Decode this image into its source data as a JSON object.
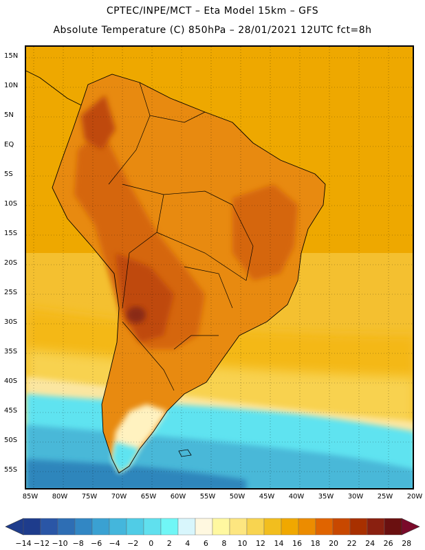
{
  "header": {
    "title_line1": "CPTEC/INPE/MCT –   Eta Model 15km – GFS",
    "title_line2": "Absolute Temperature (C) 850hPa – 28/01/2021 12UTC fct=8h"
  },
  "map": {
    "lat_labels": [
      "15N",
      "10N",
      "5N",
      "EQ",
      "5S",
      "10S",
      "15S",
      "20S",
      "25S",
      "30S",
      "35S",
      "40S",
      "45S",
      "50S",
      "55S"
    ],
    "lon_labels": [
      "85W",
      "80W",
      "75W",
      "70W",
      "65W",
      "60W",
      "55W",
      "50W",
      "45W",
      "40W",
      "35W",
      "30W",
      "25W",
      "20W"
    ],
    "palette": {
      "ocean_north": "#eea800",
      "ocean_mid": "#f4c030",
      "ocean_cool": "#f8dc6c",
      "pale": "#fff4c8",
      "cyan": "#5fe3f0",
      "blue": "#4ab8d8",
      "deep_blue": "#2f86bc",
      "land_warm": "#e88a10",
      "land_hot": "#d5660a",
      "land_hotter": "#bf4810",
      "land_hottest": "#8a2a14"
    }
  },
  "colorbar": {
    "labels": [
      "−14",
      "−12",
      "−10",
      "−8",
      "−6",
      "−4",
      "−2",
      "0",
      "2",
      "4",
      "6",
      "8",
      "10",
      "12",
      "14",
      "16",
      "18",
      "20",
      "22",
      "24",
      "26",
      "28"
    ],
    "colors": [
      "#1e3c8c",
      "#2a56a6",
      "#2e6eb4",
      "#3287c4",
      "#3aa1d2",
      "#44b6dc",
      "#50cce6",
      "#60e0ee",
      "#70f6f6",
      "#d8f6fc",
      "#fff8e0",
      "#fff8a0",
      "#fde680",
      "#f8d450",
      "#f2be1e",
      "#f0a800",
      "#ec8c00",
      "#e06400",
      "#c84800",
      "#a83000",
      "#8a2010",
      "#6a1010"
    ]
  }
}
